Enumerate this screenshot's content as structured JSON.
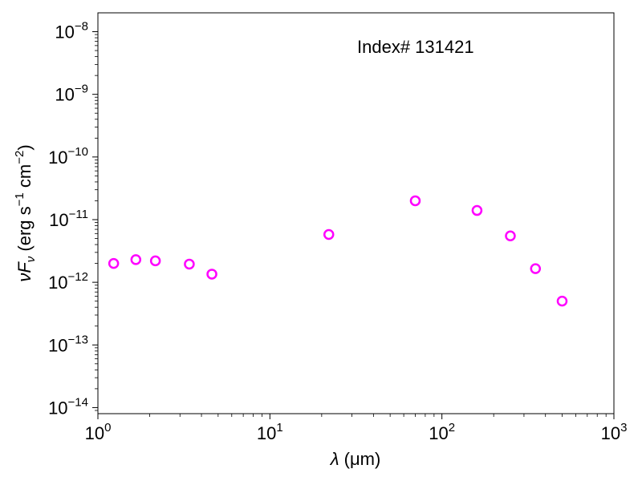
{
  "chart_data": {
    "type": "scatter",
    "annotation": "Index# 131421",
    "xlabel_var": "λ",
    "xlabel_unit": " (μm)",
    "ylabel_var": "νF",
    "ylabel_sub": "ν",
    "ylabel_unit_pre": " (erg s",
    "ylabel_unit_exp1": "−1",
    "ylabel_unit_mid": " cm",
    "ylabel_unit_exp2": "−2",
    "ylabel_unit_post": ")",
    "xscale": "log",
    "yscale": "log",
    "xlim": [
      1,
      1000
    ],
    "ylim": [
      8e-15,
      2e-08
    ],
    "x_ticks": [
      {
        "value": 1,
        "base": "10",
        "exp": "0"
      },
      {
        "value": 10,
        "base": "10",
        "exp": "1"
      },
      {
        "value": 100,
        "base": "10",
        "exp": "2"
      },
      {
        "value": 1000,
        "base": "10",
        "exp": "3"
      }
    ],
    "y_ticks": [
      {
        "value": 1e-14,
        "base": "10",
        "exp": "−14"
      },
      {
        "value": 1e-13,
        "base": "10",
        "exp": "−13"
      },
      {
        "value": 1e-12,
        "base": "10",
        "exp": "−12"
      },
      {
        "value": 1e-11,
        "base": "10",
        "exp": "−11"
      },
      {
        "value": 1e-10,
        "base": "10",
        "exp": "−10"
      },
      {
        "value": 1e-09,
        "base": "10",
        "exp": "−9"
      },
      {
        "value": 1e-08,
        "base": "10",
        "exp": "−8"
      }
    ],
    "grid": false,
    "marker_color": "#ff00ff",
    "marker": "open-circle",
    "series": [
      {
        "x": [
          1.235,
          1.662,
          2.159,
          3.4,
          4.6,
          22,
          70,
          160,
          250,
          350,
          500
        ],
        "y": [
          2e-12,
          2.3e-12,
          2.2e-12,
          1.95e-12,
          1.35e-12,
          5.8e-12,
          2e-11,
          1.4e-11,
          5.5e-12,
          1.65e-12,
          5e-13
        ]
      }
    ]
  }
}
